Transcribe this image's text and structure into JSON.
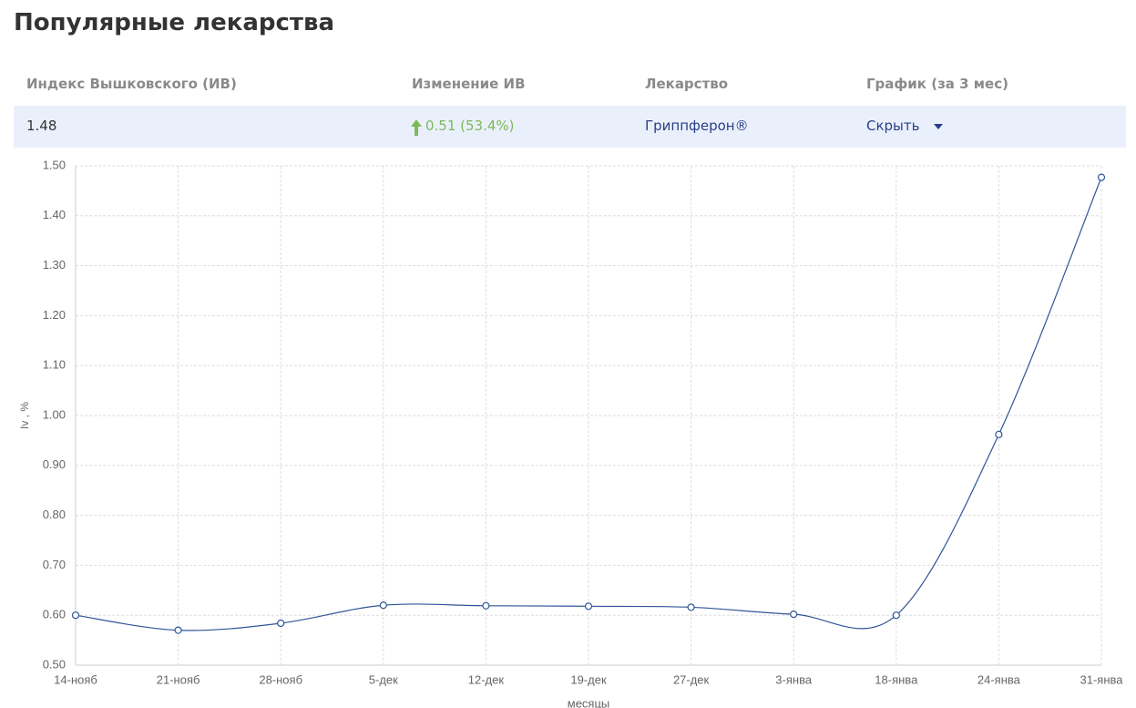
{
  "header": {
    "title": "Популярные лекарства"
  },
  "table": {
    "columns": [
      "Индекс Вышковского (ИВ)",
      "Изменение ИВ",
      "Лекарство",
      "График (за 3 мес)"
    ],
    "rows": [
      [
        "1.48",
        "0.51 (53.4%)",
        "Гриппферон®",
        "Скрыть"
      ]
    ]
  },
  "chart_data": {
    "type": "line",
    "categories": [
      "14-нояб",
      "21-нояб",
      "28-нояб",
      "5-дек",
      "12-дек",
      "19-дек",
      "27-дек",
      "3-янва",
      "18-янва",
      "24-янва",
      "31-янва"
    ],
    "values": [
      0.6,
      0.57,
      0.584,
      0.62,
      0.619,
      0.618,
      0.616,
      0.602,
      0.6,
      0.962,
      1.477
    ],
    "color": "#2f5597",
    "ylim": [
      0.5,
      1.5
    ],
    "yticks": [
      {
        "value": 0.5,
        "label": "0.50"
      },
      {
        "value": 0.6,
        "label": "0.60"
      },
      {
        "value": 0.7,
        "label": "0.70"
      },
      {
        "value": 0.8,
        "label": "0.80"
      },
      {
        "value": 0.9,
        "label": "0.90"
      },
      {
        "value": 1.0,
        "label": "1.00"
      },
      {
        "value": 1.1,
        "label": "1.10"
      },
      {
        "value": 1.2,
        "label": "1.20"
      },
      {
        "value": 1.3,
        "label": "1.30"
      },
      {
        "value": 1.4,
        "label": "1.40"
      },
      {
        "value": 1.5,
        "label": "1.50"
      }
    ],
    "ylabel": "Iv , %",
    "xlabel": "месяцы",
    "grid": true
  }
}
